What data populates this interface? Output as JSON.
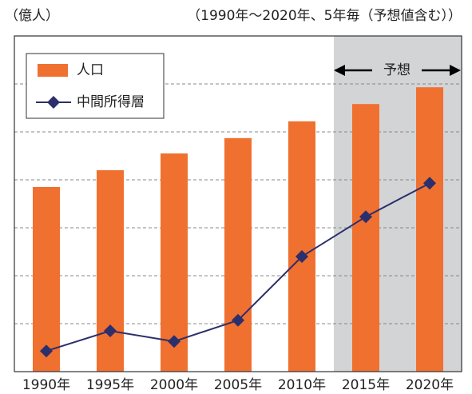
{
  "chart_data": {
    "type": "bar_line",
    "unit_label": "（億人）",
    "subtitle": "（1990年〜2020年、5年毎（予想値含む））",
    "annotation": "予想",
    "categories": [
      "1990年",
      "1995年",
      "2000年",
      "2005年",
      "2010年",
      "2015年",
      "2020年"
    ],
    "series": [
      {
        "name": "人口",
        "color": "#f07030",
        "kind": "bar",
        "values": [
          38.5,
          42,
          45.5,
          48.7,
          52.2,
          55.8,
          59.3
        ]
      },
      {
        "name": "中間所得層",
        "color": "#2b2f6b",
        "kind": "line",
        "values": [
          4.3,
          8.5,
          6.3,
          10.7,
          24,
          32.3,
          39.3
        ]
      }
    ],
    "ylim": [
      0,
      70
    ],
    "yticks": [
      10,
      20,
      30,
      40,
      50,
      60
    ],
    "grid": true
  }
}
